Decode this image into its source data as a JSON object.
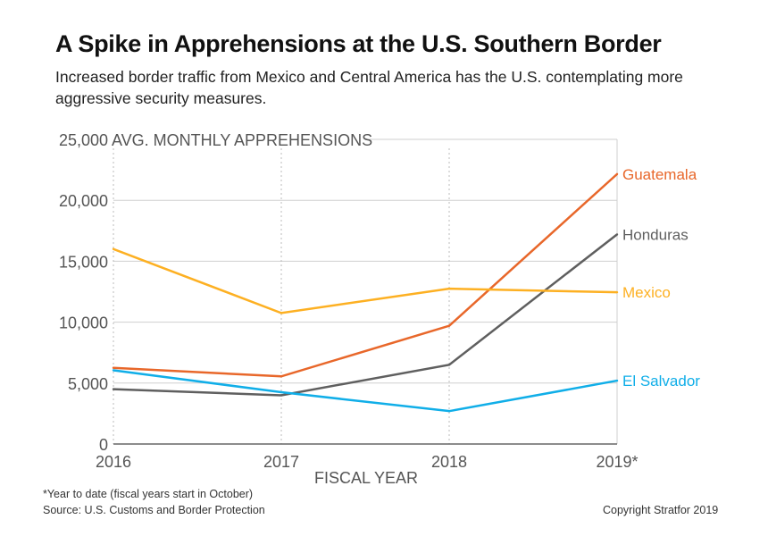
{
  "title": "A Spike in Apprehensions at the U.S. Southern Border",
  "subtitle": "Increased border traffic from Mexico and Central America has the U.S. contemplating more aggressive security measures.",
  "footnote": "*Year to date (fiscal years start in October)",
  "source": "Source: U.S. Customs and Border Protection",
  "copyright": "Copyright Stratfor 2019",
  "chart_data": {
    "type": "line",
    "title": "A Spike in Apprehensions at the U.S. Southern Border",
    "ylabel": "AVG. MONTHLY APPREHENSIONS",
    "xlabel": "FISCAL YEAR",
    "categories": [
      "2016",
      "2017",
      "2018",
      "2019*"
    ],
    "ylim": [
      0,
      25000
    ],
    "yticks": [
      0,
      5000,
      10000,
      15000,
      20000,
      25000
    ],
    "ytick_labels": [
      "0",
      "5,000",
      "10,000",
      "15,000",
      "20,000",
      "25,000"
    ],
    "grid": true,
    "legend": "direct labels at right end of lines",
    "series": [
      {
        "name": "Guatemala",
        "color": "#e8672a",
        "values": [
          6250,
          5550,
          9700,
          22150
        ]
      },
      {
        "name": "Honduras",
        "color": "#5f5f5f",
        "values": [
          4500,
          4000,
          6500,
          17200
        ]
      },
      {
        "name": "Mexico",
        "color": "#fdb022",
        "values": [
          16000,
          10750,
          12750,
          12450
        ]
      },
      {
        "name": "El Salvador",
        "color": "#10aee8",
        "values": [
          6050,
          4250,
          2700,
          5200
        ]
      }
    ]
  }
}
